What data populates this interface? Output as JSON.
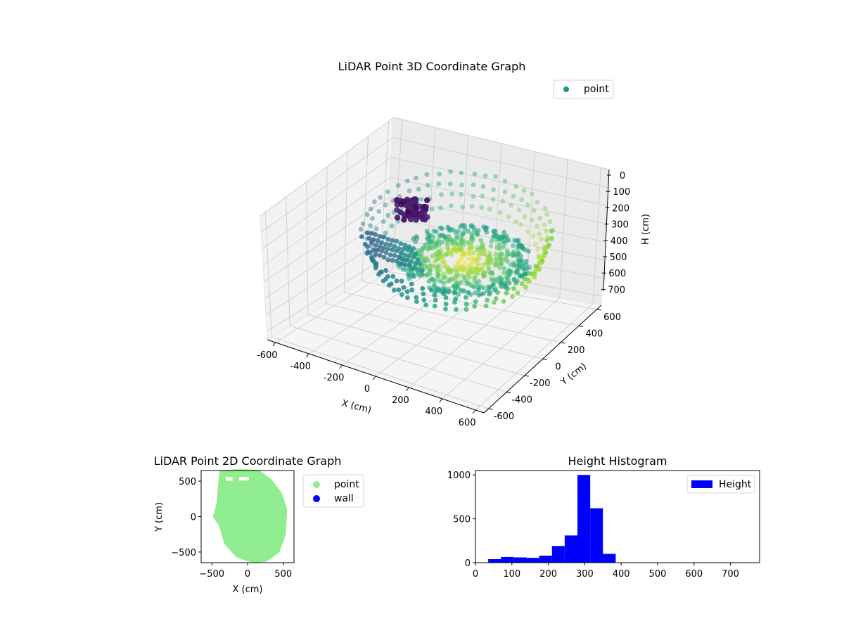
{
  "chart_data": [
    {
      "type": "scatter3d",
      "title": "LiDAR Point 3D Coordinate Graph",
      "xlabel": "X (cm)",
      "ylabel": "Y (cm)",
      "zlabel": "H (cm)",
      "x_ticks": [
        -600,
        -400,
        -200,
        0,
        200,
        400,
        600
      ],
      "y_ticks": [
        -600,
        -400,
        -200,
        0,
        200,
        400,
        600
      ],
      "z_ticks": [
        0,
        100,
        200,
        300,
        400,
        500,
        600,
        700
      ],
      "xlim": [
        -650,
        650
      ],
      "ylim": [
        -650,
        650
      ],
      "zlim": [
        0,
        750
      ],
      "z_inverted": true,
      "colormap": "viridis",
      "grid": true,
      "legend": {
        "position": "top-right",
        "entries": [
          {
            "label": "point",
            "color": "#21918c"
          }
        ]
      }
    },
    {
      "type": "scatter",
      "title": "LiDAR Point 2D Coordinate Graph",
      "xlabel": "X (cm)",
      "ylabel": "Y (cm)",
      "x_ticks": [
        -500,
        0,
        500
      ],
      "y_ticks": [
        -500,
        0,
        500
      ],
      "xlim": [
        -650,
        650
      ],
      "ylim": [
        -650,
        650
      ],
      "series": [
        {
          "name": "point",
          "color": "#90ee90"
        },
        {
          "name": "wall",
          "color": "#0000ff"
        }
      ],
      "legend": {
        "position": "outside-right"
      }
    },
    {
      "type": "bar",
      "title": "Height Histogram",
      "xlabel": "",
      "ylabel": "",
      "x_ticks": [
        0,
        100,
        200,
        300,
        400,
        500,
        600,
        700
      ],
      "y_ticks": [
        0,
        500,
        1000
      ],
      "xlim": [
        0,
        780
      ],
      "ylim": [
        0,
        1050
      ],
      "bins": [
        {
          "start": 35,
          "end": 70,
          "value": 40
        },
        {
          "start": 70,
          "end": 105,
          "value": 65
        },
        {
          "start": 105,
          "end": 140,
          "value": 60
        },
        {
          "start": 140,
          "end": 175,
          "value": 55
        },
        {
          "start": 175,
          "end": 210,
          "value": 80
        },
        {
          "start": 210,
          "end": 245,
          "value": 190
        },
        {
          "start": 245,
          "end": 280,
          "value": 310
        },
        {
          "start": 280,
          "end": 315,
          "value": 1000
        },
        {
          "start": 315,
          "end": 350,
          "value": 620
        },
        {
          "start": 350,
          "end": 385,
          "value": 100
        }
      ],
      "series": [
        {
          "name": "Height",
          "color": "#0000ff"
        }
      ],
      "legend": {
        "position": "top-right"
      }
    }
  ]
}
